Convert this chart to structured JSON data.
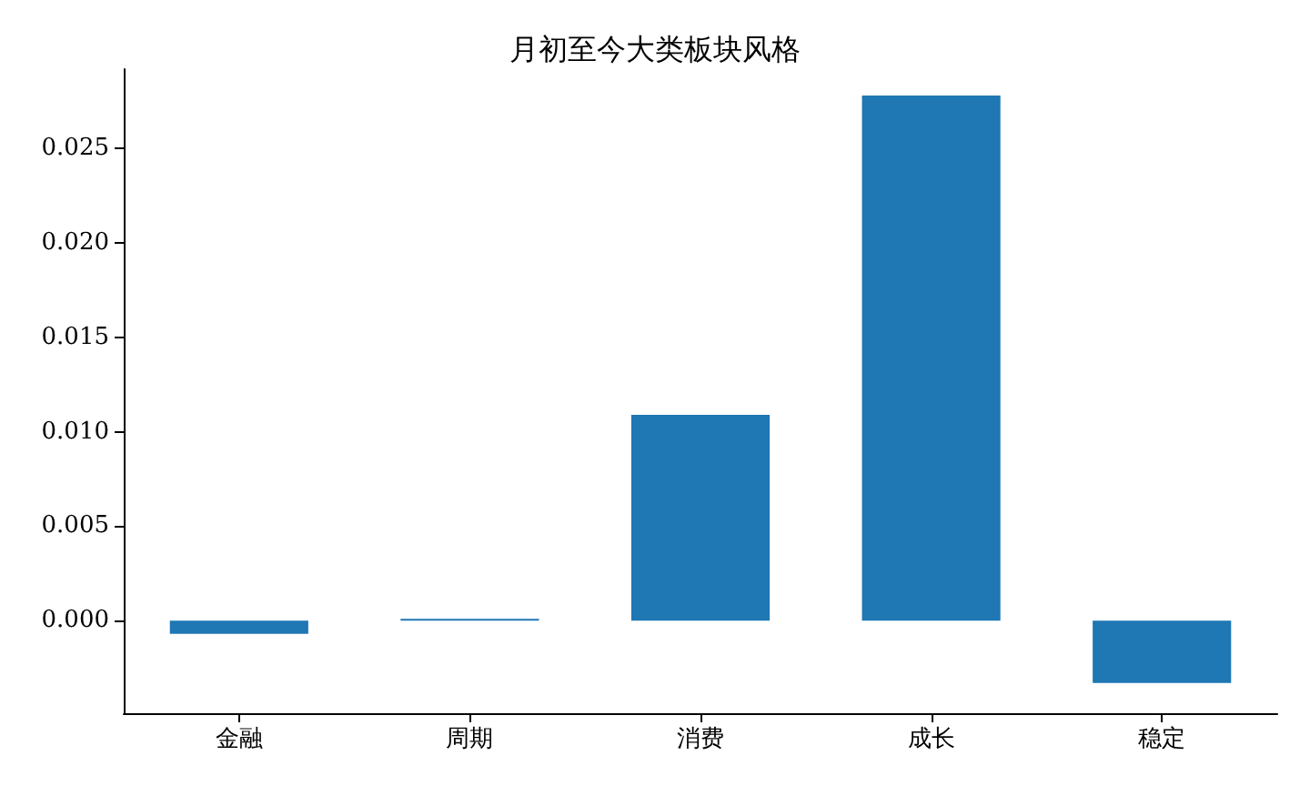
{
  "chart_data": {
    "type": "bar",
    "title": "月初至今大类板块风格",
    "categories": [
      "金融",
      "周期",
      "消费",
      "成长",
      "稳定"
    ],
    "values": [
      -0.0007,
      0.0001,
      0.0109,
      0.0278,
      -0.0033
    ],
    "color": "#1f77b4",
    "ylim": [
      -0.0049,
      0.0292
    ],
    "yticks": [
      {
        "value": 0,
        "label": "0.000"
      },
      {
        "value": 0.005,
        "label": "0.005"
      },
      {
        "value": 0.01,
        "label": "0.010"
      },
      {
        "value": 0.015,
        "label": "0.015"
      },
      {
        "value": 0.02,
        "label": "0.020"
      },
      {
        "value": 0.025,
        "label": "0.025"
      }
    ],
    "grid": false
  }
}
